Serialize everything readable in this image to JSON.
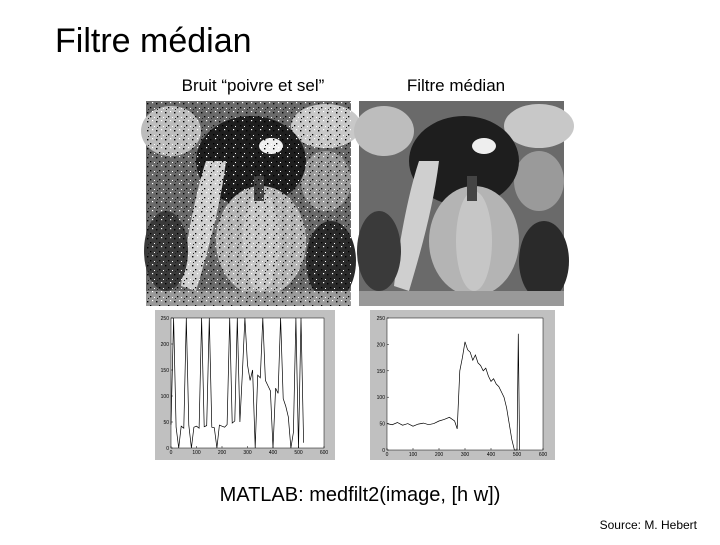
{
  "title": "Filtre médian",
  "captions": [
    "Bruit “poivre et sel”",
    "Filtre médian"
  ],
  "chart_data": [
    {
      "type": "line",
      "color": "#000000",
      "x": [
        0,
        10,
        20,
        30,
        40,
        50,
        60,
        70,
        80,
        90,
        100,
        110,
        120,
        130,
        140,
        150,
        160,
        170,
        180,
        190,
        200,
        210,
        220,
        230,
        240,
        250,
        260,
        270,
        280,
        290,
        300,
        310,
        320,
        330,
        340,
        350,
        360,
        370,
        380,
        390,
        400,
        410,
        420,
        430,
        440,
        450,
        460,
        470,
        480,
        490,
        500,
        510,
        520
      ],
      "values": [
        45,
        250,
        40,
        0,
        42,
        38,
        250,
        44,
        0,
        40,
        42,
        38,
        250,
        41,
        43,
        250,
        40,
        39,
        0,
        44,
        42,
        40,
        45,
        250,
        48,
        52,
        250,
        50,
        145,
        250,
        160,
        130,
        150,
        0,
        140,
        135,
        250,
        130,
        120,
        110,
        0,
        115,
        105,
        250,
        95,
        80,
        60,
        0,
        30,
        250,
        0,
        250,
        10
      ],
      "xlim": [
        0,
        600
      ],
      "ylim": [
        0,
        250
      ],
      "xticks": [
        0,
        100,
        200,
        300,
        400,
        500,
        600
      ],
      "yticks": [
        0,
        50,
        100,
        150,
        200,
        250
      ]
    },
    {
      "type": "line",
      "color": "#000000",
      "x": [
        0,
        20,
        40,
        60,
        80,
        100,
        120,
        140,
        160,
        180,
        200,
        220,
        240,
        260,
        270,
        280,
        290,
        300,
        310,
        320,
        330,
        340,
        350,
        360,
        370,
        380,
        390,
        400,
        410,
        420,
        430,
        440,
        450,
        460,
        470,
        480,
        490,
        500,
        505,
        510
      ],
      "values": [
        50,
        48,
        52,
        47,
        50,
        45,
        49,
        51,
        48,
        50,
        55,
        58,
        62,
        55,
        40,
        150,
        175,
        205,
        190,
        185,
        170,
        180,
        165,
        160,
        150,
        155,
        140,
        130,
        135,
        125,
        120,
        110,
        100,
        80,
        50,
        20,
        0,
        0,
        220,
        0
      ],
      "xlim": [
        0,
        600
      ],
      "ylim": [
        0,
        250
      ],
      "xticks": [
        0,
        100,
        200,
        300,
        400,
        500,
        600
      ],
      "yticks": [
        0,
        50,
        100,
        150,
        200,
        250
      ]
    }
  ],
  "command": "MATLAB: medfilt2(image, [h w])",
  "source": "Source: M. Hebert"
}
